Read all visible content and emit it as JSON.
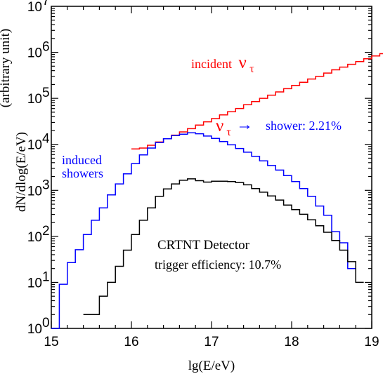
{
  "chart_data": {
    "type": "line",
    "step": true,
    "xlabel": "lg(E/eV)",
    "ylabel": "dN/dlog(E/eV)",
    "ylabel_unit": "(arbitrary unit)",
    "x_range": [
      15,
      19
    ],
    "y_range_log10": [
      0,
      7
    ],
    "y_scale": "log",
    "grid": false,
    "x_ticks": [
      {
        "value": 15,
        "label": "15"
      },
      {
        "value": 16,
        "label": "16"
      },
      {
        "value": 17,
        "label": "17"
      },
      {
        "value": 18,
        "label": "18"
      },
      {
        "value": 19,
        "label": "19"
      }
    ],
    "y_ticks": [
      {
        "exp": 0,
        "base": "10",
        "sup": "0"
      },
      {
        "exp": 1,
        "base": "10",
        "sup": "1"
      },
      {
        "exp": 2,
        "base": "10",
        "sup": "2"
      },
      {
        "exp": 3,
        "base": "10",
        "sup": "3"
      },
      {
        "exp": 4,
        "base": "10",
        "sup": "4"
      },
      {
        "exp": 5,
        "base": "10",
        "sup": "5"
      },
      {
        "exp": 6,
        "base": "10",
        "sup": "6"
      },
      {
        "exp": 7,
        "base": "10",
        "sup": "7"
      }
    ],
    "bin_width": 0.1,
    "series": [
      {
        "key": "incident",
        "color": "#ff0000",
        "bin_start": 16.0,
        "log10_values": [
          3.9,
          3.92,
          3.98,
          4.05,
          4.12,
          4.2,
          4.27,
          4.34,
          4.42,
          4.49,
          4.56,
          4.64,
          4.71,
          4.78,
          4.86,
          4.93,
          5.0,
          5.07,
          5.14,
          5.21,
          5.28,
          5.35,
          5.42,
          5.48,
          5.55,
          5.62,
          5.68,
          5.74,
          5.8,
          5.86,
          5.92,
          5.97,
          6.01,
          6.03,
          6.05,
          6.05,
          6.04
        ]
      },
      {
        "key": "showers",
        "color": "#0000ff",
        "bin_start": 15.0,
        "log10_values": [
          0.0,
          0.96,
          1.43,
          1.71,
          2.04,
          2.35,
          2.62,
          2.9,
          3.14,
          3.36,
          3.58,
          3.77,
          3.92,
          4.04,
          4.12,
          4.19,
          4.22,
          4.25,
          4.23,
          4.18,
          4.13,
          4.06,
          3.99,
          3.91,
          3.83,
          3.74,
          3.64,
          3.54,
          3.44,
          3.32,
          3.19,
          3.04,
          2.87,
          2.66,
          2.46,
          2.1,
          1.86,
          1.3
        ]
      },
      {
        "key": "trigger",
        "color": "#000000",
        "bin_start": 15.4,
        "log10_values": [
          0.3,
          0.3,
          0.7,
          1.0,
          1.35,
          1.7,
          2.04,
          2.35,
          2.62,
          2.87,
          3.03,
          3.14,
          3.22,
          3.25,
          3.21,
          3.18,
          3.2,
          3.2,
          3.19,
          3.17,
          3.12,
          3.04,
          2.96,
          2.88,
          2.79,
          2.68,
          2.58,
          2.48,
          2.36,
          2.23,
          2.09,
          1.91,
          1.7,
          1.45,
          1.0
        ]
      }
    ],
    "annotations": {
      "incident": {
        "text": "incident",
        "symbol": "ν",
        "sub": "τ",
        "color": "#ff0000"
      },
      "conversion": {
        "symbol": "ν",
        "sub": "τ",
        "arrow": "→",
        "text": "shower: 2.21%",
        "symbol_color": "#ff0000",
        "text_color": "#0000ff"
      },
      "induced": {
        "line1": "induced",
        "line2": "showers",
        "color": "#0000ff"
      },
      "detector": {
        "line1": "CRTNT Detector",
        "line2": "trigger efficiency: 10.7%",
        "color": "#000000"
      }
    }
  }
}
